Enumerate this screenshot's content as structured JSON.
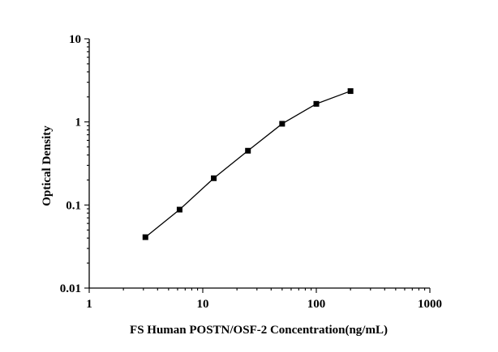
{
  "chart_data": {
    "type": "line",
    "title": "",
    "xlabel": "FS Human POSTN/OSF-2 Concentration(ng/mL)",
    "ylabel": "Optical Density",
    "x_scale": "log",
    "y_scale": "log",
    "xlim": [
      1,
      1000
    ],
    "ylim": [
      0.01,
      10
    ],
    "x_ticks": [
      1,
      10,
      100,
      1000
    ],
    "x_tick_labels": [
      "1",
      "10",
      "100",
      "1000"
    ],
    "y_ticks": [
      0.01,
      0.1,
      1,
      10
    ],
    "y_tick_labels": [
      "0.01",
      "0.1",
      "1",
      "10"
    ],
    "grid": false,
    "marker": "square",
    "series": [
      {
        "x": [
          3.125,
          6.25,
          12.5,
          25,
          50,
          100,
          200
        ],
        "y": [
          0.041,
          0.088,
          0.21,
          0.45,
          0.95,
          1.65,
          2.35
        ]
      }
    ],
    "colors": {
      "axis": "#000000",
      "line": "#000000",
      "marker": "#000000"
    }
  }
}
